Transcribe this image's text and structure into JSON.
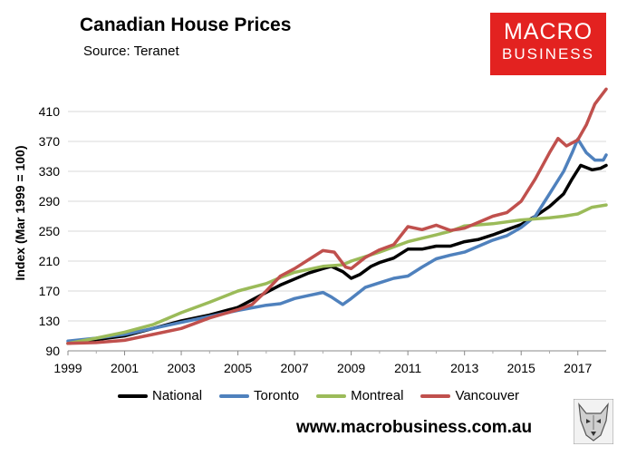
{
  "title": "Canadian House Prices",
  "subtitle": "Source: Teranet",
  "logo": {
    "line1": "MACRO",
    "line2": "BUSINESS",
    "color": "#e32220"
  },
  "website": "www.macrobusiness.com.au",
  "mascot_icon": "wolf-head-icon",
  "chart_data": {
    "type": "line",
    "title": "Canadian House Prices",
    "ylabel": "Index (Mar 1999 = 100)",
    "xlabel": "",
    "ylim": [
      90,
      450
    ],
    "xlim": [
      1999,
      2018
    ],
    "yticks": [
      90,
      130,
      170,
      210,
      250,
      290,
      330,
      370,
      410
    ],
    "xticks": [
      1999,
      2001,
      2003,
      2005,
      2007,
      2009,
      2011,
      2013,
      2015,
      2017
    ],
    "grid": true,
    "legend_position": "bottom",
    "series": [
      {
        "name": "National",
        "color": "#000000",
        "points": [
          [
            1999.0,
            100
          ],
          [
            2000.0,
            105
          ],
          [
            2001.0,
            110
          ],
          [
            2002.0,
            120
          ],
          [
            2003.0,
            130
          ],
          [
            2004.0,
            138
          ],
          [
            2005.0,
            148
          ],
          [
            2006.0,
            168
          ],
          [
            2006.5,
            178
          ],
          [
            2007.0,
            186
          ],
          [
            2007.5,
            194
          ],
          [
            2008.0,
            200
          ],
          [
            2008.3,
            203
          ],
          [
            2008.7,
            196
          ],
          [
            2009.0,
            187
          ],
          [
            2009.3,
            192
          ],
          [
            2009.7,
            203
          ],
          [
            2010.0,
            208
          ],
          [
            2010.5,
            214
          ],
          [
            2011.0,
            226
          ],
          [
            2011.5,
            226
          ],
          [
            2012.0,
            230
          ],
          [
            2012.5,
            230
          ],
          [
            2013.0,
            236
          ],
          [
            2013.5,
            239
          ],
          [
            2014.0,
            245
          ],
          [
            2014.5,
            252
          ],
          [
            2015.0,
            259
          ],
          [
            2015.5,
            270
          ],
          [
            2016.0,
            283
          ],
          [
            2016.5,
            300
          ],
          [
            2016.8,
            320
          ],
          [
            2017.1,
            338
          ],
          [
            2017.5,
            332
          ],
          [
            2017.8,
            334
          ],
          [
            2018.0,
            338
          ]
        ]
      },
      {
        "name": "Toronto",
        "color": "#4f81bd",
        "points": [
          [
            1999.0,
            103
          ],
          [
            2000.0,
            107
          ],
          [
            2001.0,
            112
          ],
          [
            2002.0,
            120
          ],
          [
            2003.0,
            128
          ],
          [
            2004.0,
            136
          ],
          [
            2005.0,
            144
          ],
          [
            2006.0,
            151
          ],
          [
            2006.5,
            153
          ],
          [
            2007.0,
            160
          ],
          [
            2007.5,
            164
          ],
          [
            2008.0,
            168
          ],
          [
            2008.3,
            162
          ],
          [
            2008.7,
            152
          ],
          [
            2009.0,
            160
          ],
          [
            2009.5,
            175
          ],
          [
            2010.0,
            181
          ],
          [
            2010.5,
            187
          ],
          [
            2011.0,
            190
          ],
          [
            2011.5,
            202
          ],
          [
            2012.0,
            213
          ],
          [
            2012.5,
            218
          ],
          [
            2013.0,
            222
          ],
          [
            2013.5,
            230
          ],
          [
            2014.0,
            238
          ],
          [
            2014.5,
            244
          ],
          [
            2015.0,
            255
          ],
          [
            2015.5,
            270
          ],
          [
            2016.0,
            300
          ],
          [
            2016.5,
            330
          ],
          [
            2016.8,
            355
          ],
          [
            2017.0,
            373
          ],
          [
            2017.3,
            355
          ],
          [
            2017.6,
            345
          ],
          [
            2017.9,
            345
          ],
          [
            2018.0,
            352
          ]
        ]
      },
      {
        "name": "Montreal",
        "color": "#9bbb59",
        "points": [
          [
            1999.0,
            100
          ],
          [
            2000.0,
            107
          ],
          [
            2001.0,
            115
          ],
          [
            2002.0,
            125
          ],
          [
            2003.0,
            141
          ],
          [
            2004.0,
            155
          ],
          [
            2005.0,
            170
          ],
          [
            2006.0,
            180
          ],
          [
            2006.5,
            188
          ],
          [
            2007.0,
            195
          ],
          [
            2008.0,
            203
          ],
          [
            2008.7,
            205
          ],
          [
            2009.0,
            210
          ],
          [
            2010.0,
            222
          ],
          [
            2011.0,
            236
          ],
          [
            2012.0,
            245
          ],
          [
            2012.5,
            250
          ],
          [
            2013.0,
            257
          ],
          [
            2014.0,
            260
          ],
          [
            2015.0,
            265
          ],
          [
            2016.0,
            268
          ],
          [
            2016.5,
            270
          ],
          [
            2017.0,
            273
          ],
          [
            2017.5,
            282
          ],
          [
            2018.0,
            285
          ]
        ]
      },
      {
        "name": "Vancouver",
        "color": "#c0504d",
        "points": [
          [
            1999.0,
            100
          ],
          [
            2000.0,
            101
          ],
          [
            2001.0,
            104
          ],
          [
            2002.0,
            112
          ],
          [
            2003.0,
            120
          ],
          [
            2004.0,
            134
          ],
          [
            2005.0,
            145
          ],
          [
            2005.5,
            152
          ],
          [
            2006.0,
            170
          ],
          [
            2006.5,
            190
          ],
          [
            2007.0,
            200
          ],
          [
            2007.5,
            212
          ],
          [
            2008.0,
            224
          ],
          [
            2008.4,
            222
          ],
          [
            2008.8,
            202
          ],
          [
            2009.0,
            200
          ],
          [
            2009.5,
            215
          ],
          [
            2010.0,
            225
          ],
          [
            2010.5,
            232
          ],
          [
            2011.0,
            256
          ],
          [
            2011.5,
            252
          ],
          [
            2012.0,
            258
          ],
          [
            2012.5,
            251
          ],
          [
            2013.0,
            254
          ],
          [
            2013.5,
            262
          ],
          [
            2014.0,
            270
          ],
          [
            2014.5,
            275
          ],
          [
            2015.0,
            290
          ],
          [
            2015.5,
            320
          ],
          [
            2016.0,
            355
          ],
          [
            2016.3,
            374
          ],
          [
            2016.6,
            364
          ],
          [
            2017.0,
            372
          ],
          [
            2017.3,
            392
          ],
          [
            2017.6,
            420
          ],
          [
            2018.0,
            440
          ]
        ]
      }
    ]
  }
}
